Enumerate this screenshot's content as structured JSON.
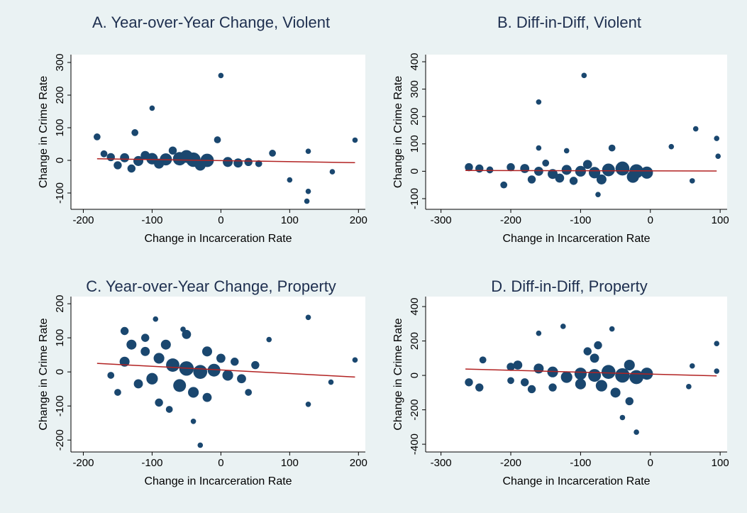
{
  "chart_data": [
    {
      "type": "scatter",
      "title": "A. Year-over-Year Change, Violent",
      "xlabel": "Change in Incarceration Rate",
      "ylabel": "Change in Crime Rate",
      "xlim": [
        -218,
        210
      ],
      "ylim": [
        -150,
        324
      ],
      "xticks": [
        -200,
        -100,
        0,
        100,
        200
      ],
      "yticks": [
        -100,
        0,
        100,
        200,
        300
      ],
      "color": "#1a476f",
      "x": [
        0,
        -100,
        -180,
        -125,
        195,
        127,
        127,
        125,
        162,
        100,
        -5,
        75,
        -60,
        -40,
        -20,
        -80,
        -100,
        -120,
        -140,
        -160,
        -170,
        10,
        25,
        40,
        -30,
        -50,
        -90,
        -110,
        -150,
        55,
        -70,
        -130
      ],
      "y": [
        260,
        160,
        72,
        85,
        62,
        28,
        -95,
        -125,
        -35,
        -60,
        63,
        22,
        5,
        2,
        0,
        3,
        5,
        -2,
        8,
        10,
        20,
        -5,
        -8,
        -5,
        -15,
        12,
        -10,
        15,
        -15,
        -10,
        30,
        -25
      ],
      "sizes": [
        1,
        1,
        2,
        2,
        1,
        1,
        1,
        1,
        1,
        1,
        2,
        2,
        10,
        12,
        10,
        8,
        7,
        5,
        4,
        3,
        2,
        5,
        4,
        3,
        6,
        9,
        5,
        4,
        3,
        2,
        3,
        3
      ],
      "fit": {
        "x": [
          -180,
          195
        ],
        "y": [
          5,
          -7
        ],
        "color": "#b22222"
      }
    },
    {
      "type": "scatter",
      "title": "B. Diff-in-Diff, Violent",
      "xlabel": "Change in Incarceration Rate",
      "ylabel": "Change in Crime Rate",
      "xlim": [
        -322,
        110
      ],
      "ylim": [
        -139,
        426
      ],
      "xticks": [
        -300,
        -200,
        -100,
        0,
        100
      ],
      "yticks": [
        -100,
        0,
        100,
        200,
        300,
        400
      ],
      "color": "#1a476f",
      "x": [
        -95,
        -160,
        -160,
        65,
        95,
        30,
        97,
        -55,
        -120,
        -75,
        -260,
        -245,
        -230,
        -200,
        -180,
        -160,
        -140,
        -120,
        -100,
        -80,
        -60,
        -40,
        -20,
        -5,
        -170,
        -130,
        -150,
        -110,
        -90,
        -210,
        -70,
        -25,
        60
      ],
      "y": [
        350,
        253,
        85,
        155,
        120,
        90,
        55,
        85,
        75,
        -85,
        15,
        10,
        5,
        15,
        10,
        0,
        -10,
        5,
        0,
        -5,
        5,
        10,
        0,
        -5,
        -30,
        -25,
        30,
        -35,
        25,
        -50,
        -30,
        -20,
        -35
      ],
      "sizes": [
        1,
        1,
        1,
        1,
        1,
        1,
        1,
        2,
        1,
        1,
        3,
        3,
        2,
        3,
        4,
        4,
        5,
        5,
        6,
        7,
        9,
        11,
        11,
        8,
        3,
        4,
        2,
        3,
        4,
        2,
        5,
        8,
        1
      ],
      "fit": {
        "x": [
          -265,
          95
        ],
        "y": [
          3,
          1
        ],
        "color": "#b22222"
      }
    },
    {
      "type": "scatter",
      "title": "C. Year-over-Year Change, Property",
      "xlabel": "Change in Incarceration Rate",
      "ylabel": "Change in Crime Rate",
      "xlim": [
        -218,
        210
      ],
      "ylim": [
        -235,
        221
      ],
      "xticks": [
        -200,
        -100,
        0,
        100,
        200
      ],
      "yticks": [
        -200,
        -100,
        0,
        100,
        200
      ],
      "color": "#1a476f",
      "x": [
        -30,
        127,
        127,
        195,
        160,
        -40,
        -95,
        -55,
        70,
        -140,
        -130,
        -110,
        -90,
        -70,
        -50,
        -30,
        -10,
        10,
        30,
        -60,
        -40,
        -100,
        -120,
        -140,
        -160,
        -80,
        -50,
        -20,
        0,
        20,
        -20,
        -150,
        -90,
        50,
        -110,
        -75,
        40
      ],
      "y": [
        -215,
        160,
        -95,
        35,
        -30,
        -145,
        155,
        125,
        95,
        120,
        80,
        60,
        40,
        20,
        10,
        0,
        5,
        -10,
        -20,
        -40,
        -60,
        -20,
        -35,
        30,
        -10,
        80,
        110,
        60,
        40,
        30,
        -75,
        -60,
        -90,
        20,
        100,
        -110,
        -60
      ],
      "sizes": [
        1,
        1,
        1,
        1,
        1,
        1,
        1,
        1,
        1,
        3,
        5,
        4,
        6,
        10,
        12,
        11,
        9,
        6,
        4,
        9,
        6,
        7,
        4,
        5,
        2,
        5,
        4,
        5,
        4,
        3,
        4,
        2,
        3,
        3,
        3,
        2,
        2
      ],
      "fit": {
        "x": [
          -180,
          195
        ],
        "y": [
          25,
          -15
        ],
        "color": "#b22222"
      }
    },
    {
      "type": "scatter",
      "title": "D. Diff-in-Diff, Property",
      "xlabel": "Change in Incarceration Rate",
      "ylabel": "Change in Crime Rate",
      "xlim": [
        -322,
        110
      ],
      "ylim": [
        -445,
        458
      ],
      "xticks": [
        -300,
        -200,
        -100,
        0,
        100
      ],
      "yticks": [
        -400,
        -200,
        0,
        200,
        400
      ],
      "color": "#1a476f",
      "x": [
        -125,
        -55,
        -160,
        95,
        60,
        -20,
        -40,
        95,
        55,
        -260,
        -245,
        -240,
        -200,
        -190,
        -180,
        -160,
        -140,
        -120,
        -100,
        -80,
        -60,
        -40,
        -20,
        -5,
        -70,
        -100,
        -50,
        -80,
        -30,
        -90,
        -75,
        -30,
        -140,
        -200,
        -170
      ],
      "y": [
        285,
        270,
        245,
        185,
        55,
        -330,
        -245,
        25,
        -65,
        -40,
        -70,
        90,
        50,
        60,
        -40,
        40,
        20,
        -10,
        10,
        0,
        20,
        0,
        -10,
        10,
        -60,
        -50,
        -100,
        100,
        60,
        140,
        175,
        -150,
        -70,
        -30,
        -80
      ],
      "sizes": [
        1,
        1,
        1,
        1,
        1,
        1,
        1,
        1,
        1,
        3,
        3,
        2,
        3,
        4,
        3,
        5,
        6,
        7,
        8,
        9,
        11,
        12,
        11,
        8,
        7,
        6,
        5,
        4,
        6,
        3,
        3,
        3,
        3,
        2,
        3
      ],
      "fit": {
        "x": [
          -265,
          95
        ],
        "y": [
          37,
          -3
        ],
        "color": "#b22222"
      }
    }
  ]
}
